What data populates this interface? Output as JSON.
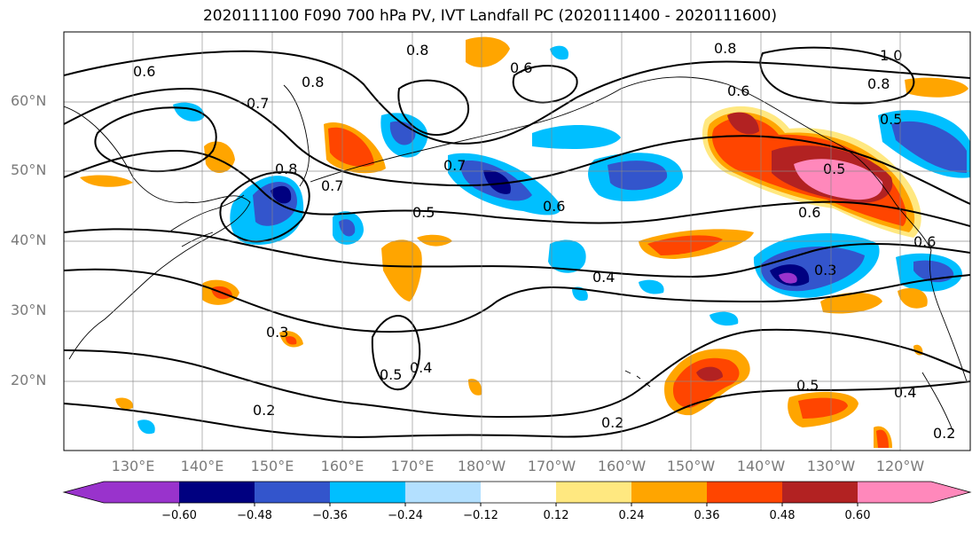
{
  "title": "2020111100 F090 700 hPa PV, IVT Landfall PC (2020111400 - 2020111600)",
  "lat_labels": [
    "60°N",
    "50°N",
    "40°N",
    "30°N",
    "20°N"
  ],
  "lon_labels": [
    "130°E",
    "140°E",
    "150°E",
    "160°E",
    "170°E",
    "180°W",
    "170°W",
    "160°W",
    "150°W",
    "140°W",
    "130°W",
    "120°W"
  ],
  "colorbar": {
    "ticks": [
      "−0.60",
      "−0.48",
      "−0.36",
      "−0.24",
      "−0.12",
      "0.12",
      "0.24",
      "0.36",
      "0.48",
      "0.60"
    ],
    "colors": [
      "#9933cc",
      "#000080",
      "#3355cc",
      "#00bfff",
      "#b3e0ff",
      "#ffffff",
      "#ffe880",
      "#ffa500",
      "#ff4500",
      "#b22222",
      "#ff88bb"
    ]
  },
  "contour_labels": [
    "0.6",
    "0.8",
    "0.8",
    "0.8",
    "1.0",
    "0.8",
    "0.6",
    "0.7",
    "0.8",
    "0.7",
    "0.5",
    "0.6",
    "0.6",
    "0.6",
    "0.5",
    "0.6",
    "0.4",
    "0.3",
    "0.3",
    "0.5",
    "0.4",
    "0.2",
    "0.2",
    "0.5",
    "0.4",
    "0.2",
    "0.7",
    "0.5"
  ]
}
